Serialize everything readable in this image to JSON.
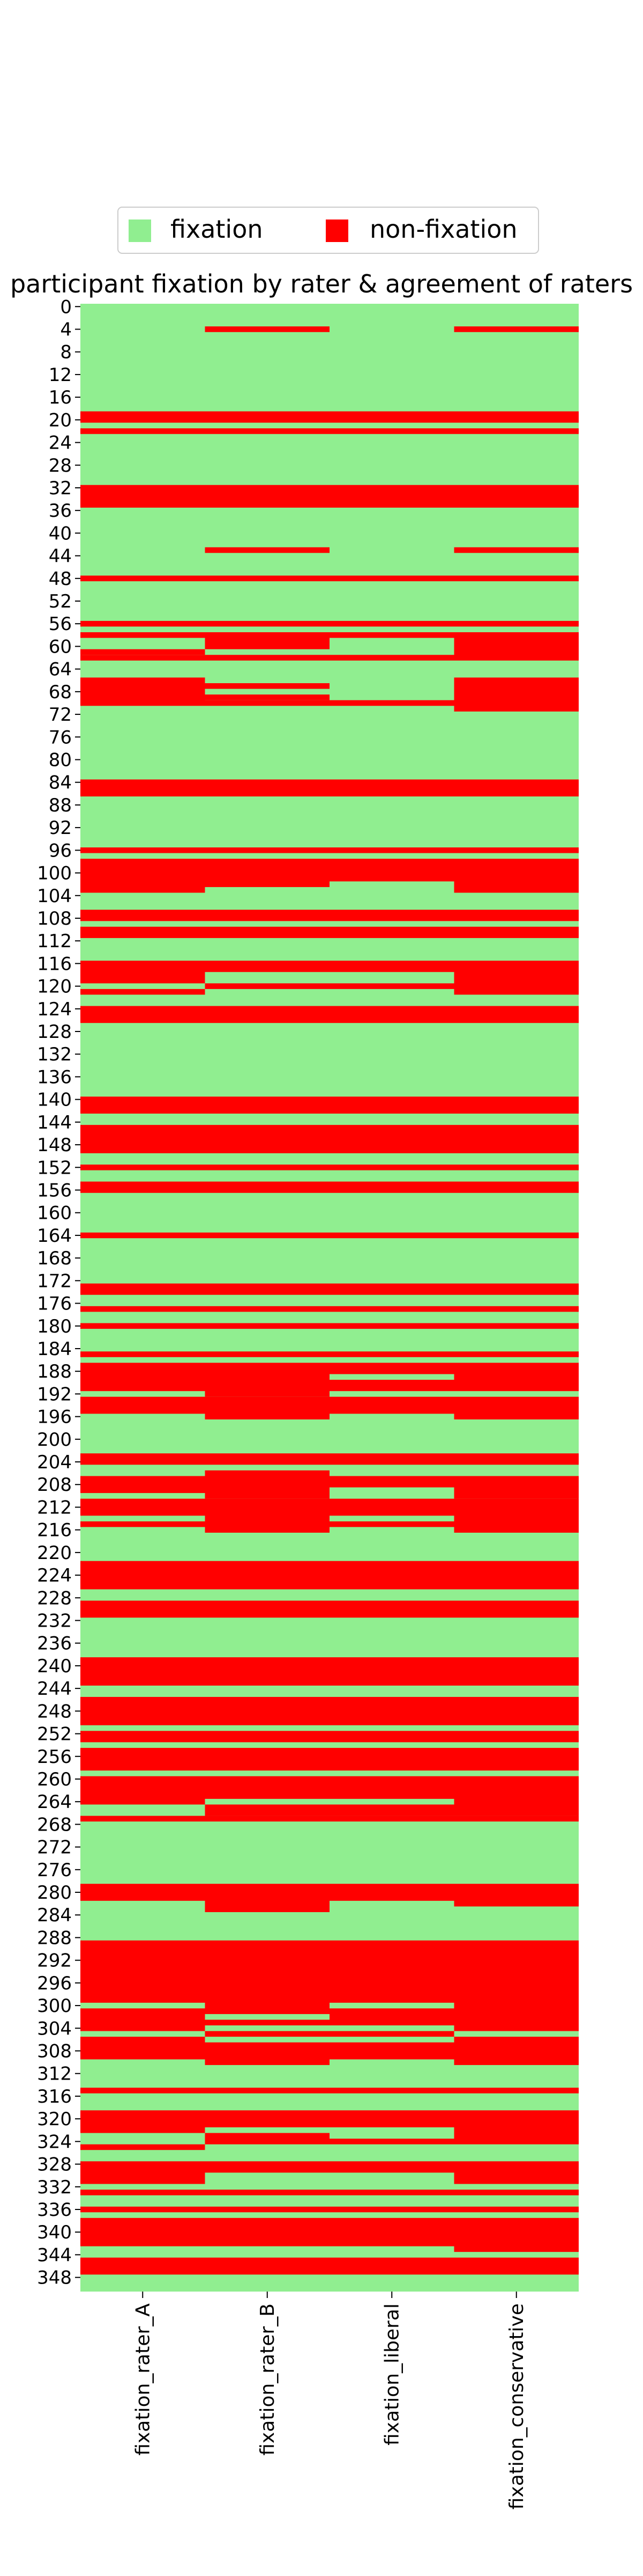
{
  "chart_data": {
    "type": "heatmap",
    "title": "participant fixation by rater & agreement of raters",
    "xlabel": "",
    "ylabel": "",
    "columns": [
      "fixation_rater_A",
      "fixation_rater_B",
      "fixation_liberal",
      "fixation_conservative"
    ],
    "row_count": 351,
    "y_tick_step": 4,
    "legend": {
      "placement": "top",
      "entries": [
        {
          "label": "fixation",
          "color": "#90ee90"
        },
        {
          "label": "non-fixation",
          "color": "#ff0000"
        }
      ]
    },
    "colors": {
      "fixation": "#90ee90",
      "non-fixation": "#ff0000"
    },
    "non_fixation_rows": {
      "fixation_rater_A": [
        [
          19,
          20
        ],
        [
          22,
          22
        ],
        [
          32,
          35
        ],
        [
          48,
          48
        ],
        [
          56,
          56
        ],
        [
          58,
          58
        ],
        [
          61,
          61
        ],
        [
          62,
          62
        ],
        [
          66,
          70
        ],
        [
          84,
          86
        ],
        [
          96,
          96
        ],
        [
          98,
          103
        ],
        [
          107,
          108
        ],
        [
          110,
          111
        ],
        [
          116,
          119
        ],
        [
          121,
          121
        ],
        [
          124,
          126
        ],
        [
          140,
          142
        ],
        [
          145,
          149
        ],
        [
          152,
          152
        ],
        [
          155,
          156
        ],
        [
          164,
          164
        ],
        [
          173,
          174
        ],
        [
          177,
          177
        ],
        [
          180,
          180
        ],
        [
          185,
          185
        ],
        [
          187,
          191
        ],
        [
          193,
          195
        ],
        [
          203,
          204
        ],
        [
          207,
          209
        ],
        [
          211,
          213
        ],
        [
          215,
          215
        ],
        [
          222,
          226
        ],
        [
          229,
          231
        ],
        [
          239,
          243
        ],
        [
          246,
          250
        ],
        [
          252,
          253
        ],
        [
          255,
          258
        ],
        [
          260,
          264
        ],
        [
          267,
          267
        ],
        [
          279,
          281
        ],
        [
          289,
          299
        ],
        [
          301,
          304
        ],
        [
          306,
          309
        ],
        [
          315,
          315
        ],
        [
          319,
          322
        ],
        [
          325,
          325
        ],
        [
          328,
          331
        ],
        [
          333,
          333
        ],
        [
          336,
          336
        ],
        [
          338,
          342
        ],
        [
          345,
          347
        ]
      ],
      "fixation_rater_B": [
        [
          4,
          4
        ],
        [
          19,
          20
        ],
        [
          22,
          22
        ],
        [
          32,
          35
        ],
        [
          43,
          43
        ],
        [
          48,
          48
        ],
        [
          56,
          56
        ],
        [
          58,
          60
        ],
        [
          62,
          62
        ],
        [
          67,
          67
        ],
        [
          69,
          69
        ],
        [
          70,
          70
        ],
        [
          84,
          86
        ],
        [
          96,
          96
        ],
        [
          98,
          102
        ],
        [
          107,
          108
        ],
        [
          110,
          111
        ],
        [
          116,
          117
        ],
        [
          120,
          120
        ],
        [
          124,
          126
        ],
        [
          140,
          142
        ],
        [
          145,
          149
        ],
        [
          152,
          152
        ],
        [
          155,
          156
        ],
        [
          164,
          164
        ],
        [
          173,
          174
        ],
        [
          177,
          177
        ],
        [
          180,
          180
        ],
        [
          185,
          185
        ],
        [
          187,
          192
        ],
        [
          193,
          196
        ],
        [
          203,
          204
        ],
        [
          206,
          210
        ],
        [
          211,
          216
        ],
        [
          222,
          226
        ],
        [
          229,
          231
        ],
        [
          239,
          243
        ],
        [
          246,
          250
        ],
        [
          252,
          253
        ],
        [
          255,
          258
        ],
        [
          260,
          263
        ],
        [
          265,
          266
        ],
        [
          267,
          267
        ],
        [
          279,
          283
        ],
        [
          289,
          301
        ],
        [
          303,
          303
        ],
        [
          305,
          305
        ],
        [
          307,
          310
        ],
        [
          315,
          315
        ],
        [
          319,
          321
        ],
        [
          323,
          324
        ],
        [
          328,
          329
        ],
        [
          333,
          333
        ],
        [
          336,
          336
        ],
        [
          338,
          342
        ],
        [
          345,
          347
        ]
      ],
      "fixation_liberal": [
        [
          19,
          20
        ],
        [
          22,
          22
        ],
        [
          32,
          35
        ],
        [
          48,
          48
        ],
        [
          56,
          56
        ],
        [
          58,
          58
        ],
        [
          62,
          62
        ],
        [
          70,
          70
        ],
        [
          84,
          86
        ],
        [
          96,
          96
        ],
        [
          98,
          101
        ],
        [
          107,
          108
        ],
        [
          110,
          111
        ],
        [
          116,
          117
        ],
        [
          120,
          120
        ],
        [
          124,
          126
        ],
        [
          140,
          142
        ],
        [
          145,
          149
        ],
        [
          152,
          152
        ],
        [
          155,
          156
        ],
        [
          164,
          164
        ],
        [
          173,
          174
        ],
        [
          177,
          177
        ],
        [
          180,
          180
        ],
        [
          185,
          185
        ],
        [
          187,
          188
        ],
        [
          190,
          191
        ],
        [
          193,
          195
        ],
        [
          203,
          204
        ],
        [
          207,
          208
        ],
        [
          211,
          213
        ],
        [
          215,
          215
        ],
        [
          222,
          226
        ],
        [
          229,
          231
        ],
        [
          239,
          243
        ],
        [
          246,
          250
        ],
        [
          252,
          253
        ],
        [
          255,
          258
        ],
        [
          260,
          263
        ],
        [
          265,
          266
        ],
        [
          267,
          267
        ],
        [
          279,
          281
        ],
        [
          289,
          299
        ],
        [
          301,
          303
        ],
        [
          305,
          305
        ],
        [
          307,
          309
        ],
        [
          315,
          315
        ],
        [
          319,
          321
        ],
        [
          324,
          324
        ],
        [
          328,
          329
        ],
        [
          333,
          333
        ],
        [
          336,
          336
        ],
        [
          338,
          342
        ],
        [
          345,
          347
        ]
      ],
      "fixation_conservative": [
        [
          4,
          4
        ],
        [
          19,
          20
        ],
        [
          22,
          22
        ],
        [
          32,
          35
        ],
        [
          43,
          43
        ],
        [
          48,
          48
        ],
        [
          56,
          56
        ],
        [
          58,
          62
        ],
        [
          66,
          71
        ],
        [
          84,
          86
        ],
        [
          96,
          96
        ],
        [
          98,
          103
        ],
        [
          107,
          108
        ],
        [
          110,
          111
        ],
        [
          116,
          121
        ],
        [
          124,
          126
        ],
        [
          140,
          142
        ],
        [
          145,
          149
        ],
        [
          152,
          152
        ],
        [
          155,
          156
        ],
        [
          164,
          164
        ],
        [
          173,
          174
        ],
        [
          177,
          177
        ],
        [
          180,
          180
        ],
        [
          185,
          185
        ],
        [
          187,
          191
        ],
        [
          193,
          196
        ],
        [
          203,
          204
        ],
        [
          207,
          210
        ],
        [
          211,
          216
        ],
        [
          222,
          226
        ],
        [
          229,
          231
        ],
        [
          239,
          243
        ],
        [
          246,
          250
        ],
        [
          252,
          253
        ],
        [
          255,
          258
        ],
        [
          260,
          266
        ],
        [
          267,
          267
        ],
        [
          279,
          282
        ],
        [
          289,
          304
        ],
        [
          306,
          310
        ],
        [
          315,
          315
        ],
        [
          319,
          324
        ],
        [
          328,
          331
        ],
        [
          333,
          333
        ],
        [
          336,
          336
        ],
        [
          338,
          343
        ],
        [
          345,
          347
        ]
      ]
    }
  }
}
